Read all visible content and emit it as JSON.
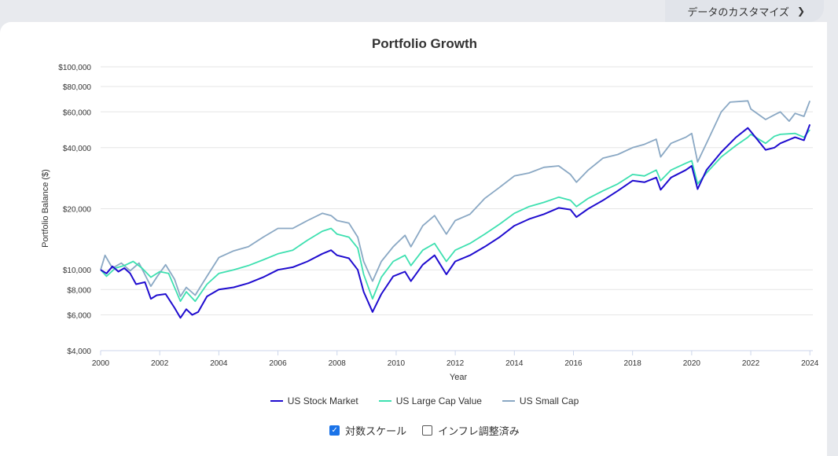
{
  "header": {
    "customize_label": "データのカスタマイズ"
  },
  "colors": {
    "us_stock": "#1f0ccf",
    "large_value": "#3ee0b0",
    "small_cap": "#8aa8c4"
  },
  "options": {
    "log_scale_label": "対数スケール",
    "log_scale_checked": true,
    "inflation_label": "インフレ調整済み",
    "inflation_checked": false
  },
  "chart_data": {
    "type": "line",
    "title": "Portfolio Growth",
    "xlabel": "Year",
    "ylabel": "Portfolio Balance ($)",
    "yscale": "log",
    "ylim": [
      4000,
      100000
    ],
    "xlim": [
      2000,
      2024.1
    ],
    "yticks": [
      4000,
      6000,
      8000,
      10000,
      20000,
      40000,
      60000,
      80000,
      100000
    ],
    "ytick_labels": [
      "$4,000",
      "$6,000",
      "$8,000",
      "$10,000",
      "$20,000",
      "$40,000",
      "$60,000",
      "$80,000",
      "$100,000"
    ],
    "xticks": [
      2000,
      2002,
      2004,
      2006,
      2008,
      2010,
      2012,
      2014,
      2016,
      2018,
      2020,
      2022,
      2024
    ],
    "xtick_labels": [
      "2000",
      "2002",
      "2004",
      "2006",
      "2008",
      "2010",
      "2012",
      "2014",
      "2016",
      "2018",
      "2020",
      "2022",
      "2024"
    ],
    "series": [
      {
        "name": "US Stock Market",
        "color": "#1f0ccf",
        "points": [
          [
            2000,
            10000
          ],
          [
            2000.2,
            9600
          ],
          [
            2000.4,
            10400
          ],
          [
            2000.6,
            9800
          ],
          [
            2000.8,
            10200
          ],
          [
            2001.0,
            9600
          ],
          [
            2001.2,
            8500
          ],
          [
            2001.5,
            8700
          ],
          [
            2001.7,
            7200
          ],
          [
            2001.9,
            7500
          ],
          [
            2002.2,
            7600
          ],
          [
            2002.5,
            6500
          ],
          [
            2002.7,
            5800
          ],
          [
            2002.9,
            6400
          ],
          [
            2003.1,
            6000
          ],
          [
            2003.3,
            6200
          ],
          [
            2003.6,
            7400
          ],
          [
            2004.0,
            8000
          ],
          [
            2004.5,
            8200
          ],
          [
            2005.0,
            8600
          ],
          [
            2005.5,
            9200
          ],
          [
            2006.0,
            10000
          ],
          [
            2006.5,
            10300
          ],
          [
            2007.0,
            11000
          ],
          [
            2007.5,
            12000
          ],
          [
            2007.8,
            12500
          ],
          [
            2008.0,
            11800
          ],
          [
            2008.4,
            11400
          ],
          [
            2008.7,
            10000
          ],
          [
            2008.9,
            7800
          ],
          [
            2009.2,
            6200
          ],
          [
            2009.5,
            7600
          ],
          [
            2009.9,
            9300
          ],
          [
            2010.3,
            9800
          ],
          [
            2010.5,
            8800
          ],
          [
            2010.9,
            10600
          ],
          [
            2011.3,
            11800
          ],
          [
            2011.7,
            9500
          ],
          [
            2012.0,
            11000
          ],
          [
            2012.5,
            11800
          ],
          [
            2013.0,
            13000
          ],
          [
            2013.5,
            14500
          ],
          [
            2014.0,
            16500
          ],
          [
            2014.5,
            17800
          ],
          [
            2015.0,
            18800
          ],
          [
            2015.5,
            20200
          ],
          [
            2015.9,
            19800
          ],
          [
            2016.1,
            18200
          ],
          [
            2016.5,
            20000
          ],
          [
            2017.0,
            22000
          ],
          [
            2017.5,
            24500
          ],
          [
            2018.0,
            27500
          ],
          [
            2018.4,
            27000
          ],
          [
            2018.8,
            28500
          ],
          [
            2018.95,
            24800
          ],
          [
            2019.3,
            28500
          ],
          [
            2019.8,
            31000
          ],
          [
            2020.0,
            32500
          ],
          [
            2020.2,
            25000
          ],
          [
            2020.5,
            31000
          ],
          [
            2021.0,
            38000
          ],
          [
            2021.5,
            45000
          ],
          [
            2021.9,
            50000
          ],
          [
            2022.0,
            48000
          ],
          [
            2022.5,
            39000
          ],
          [
            2022.8,
            40000
          ],
          [
            2023.0,
            42000
          ],
          [
            2023.5,
            45000
          ],
          [
            2023.8,
            43500
          ],
          [
            2024.0,
            52000
          ]
        ]
      },
      {
        "name": "US Large Cap Value",
        "color": "#3ee0b0",
        "points": [
          [
            2000,
            10000
          ],
          [
            2000.2,
            9300
          ],
          [
            2000.5,
            10200
          ],
          [
            2000.8,
            10500
          ],
          [
            2001.1,
            11000
          ],
          [
            2001.4,
            10200
          ],
          [
            2001.7,
            9200
          ],
          [
            2002.0,
            9800
          ],
          [
            2002.3,
            9600
          ],
          [
            2002.7,
            7000
          ],
          [
            2002.9,
            7800
          ],
          [
            2003.2,
            7000
          ],
          [
            2003.6,
            8500
          ],
          [
            2004.0,
            9600
          ],
          [
            2004.5,
            10000
          ],
          [
            2005.0,
            10500
          ],
          [
            2005.5,
            11200
          ],
          [
            2006.0,
            12000
          ],
          [
            2006.5,
            12500
          ],
          [
            2007.0,
            14000
          ],
          [
            2007.5,
            15500
          ],
          [
            2007.8,
            16000
          ],
          [
            2008.0,
            15000
          ],
          [
            2008.4,
            14500
          ],
          [
            2008.7,
            12800
          ],
          [
            2008.9,
            9500
          ],
          [
            2009.2,
            7200
          ],
          [
            2009.5,
            9200
          ],
          [
            2009.9,
            11000
          ],
          [
            2010.3,
            11800
          ],
          [
            2010.5,
            10500
          ],
          [
            2010.9,
            12500
          ],
          [
            2011.3,
            13500
          ],
          [
            2011.7,
            11000
          ],
          [
            2012.0,
            12500
          ],
          [
            2012.5,
            13500
          ],
          [
            2013.0,
            15000
          ],
          [
            2013.5,
            16800
          ],
          [
            2014.0,
            19000
          ],
          [
            2014.5,
            20500
          ],
          [
            2015.0,
            21500
          ],
          [
            2015.5,
            22800
          ],
          [
            2015.9,
            22000
          ],
          [
            2016.1,
            20500
          ],
          [
            2016.5,
            22500
          ],
          [
            2017.0,
            24500
          ],
          [
            2017.5,
            26500
          ],
          [
            2018.0,
            29500
          ],
          [
            2018.4,
            29000
          ],
          [
            2018.8,
            31000
          ],
          [
            2018.95,
            27500
          ],
          [
            2019.3,
            31000
          ],
          [
            2019.8,
            33500
          ],
          [
            2020.0,
            34500
          ],
          [
            2020.2,
            26500
          ],
          [
            2020.5,
            30000
          ],
          [
            2021.0,
            36000
          ],
          [
            2021.5,
            41000
          ],
          [
            2021.9,
            45000
          ],
          [
            2022.0,
            46500
          ],
          [
            2022.5,
            42000
          ],
          [
            2022.8,
            45500
          ],
          [
            2023.0,
            46500
          ],
          [
            2023.5,
            47000
          ],
          [
            2023.8,
            45000
          ],
          [
            2024.0,
            49000
          ]
        ]
      },
      {
        "name": "US Small Cap",
        "color": "#8aa8c4",
        "points": [
          [
            2000,
            10000
          ],
          [
            2000.15,
            11800
          ],
          [
            2000.4,
            10200
          ],
          [
            2000.7,
            10800
          ],
          [
            2001.0,
            9900
          ],
          [
            2001.3,
            10800
          ],
          [
            2001.7,
            8300
          ],
          [
            2001.9,
            9200
          ],
          [
            2002.2,
            10600
          ],
          [
            2002.5,
            9000
          ],
          [
            2002.7,
            7400
          ],
          [
            2002.9,
            8200
          ],
          [
            2003.2,
            7500
          ],
          [
            2003.6,
            9300
          ],
          [
            2004.0,
            11500
          ],
          [
            2004.5,
            12400
          ],
          [
            2005.0,
            13000
          ],
          [
            2005.5,
            14500
          ],
          [
            2006.0,
            16000
          ],
          [
            2006.5,
            16000
          ],
          [
            2007.0,
            17500
          ],
          [
            2007.5,
            19000
          ],
          [
            2007.8,
            18500
          ],
          [
            2008.0,
            17500
          ],
          [
            2008.4,
            17000
          ],
          [
            2008.7,
            14500
          ],
          [
            2008.9,
            11000
          ],
          [
            2009.2,
            8800
          ],
          [
            2009.5,
            11000
          ],
          [
            2009.9,
            13000
          ],
          [
            2010.3,
            14800
          ],
          [
            2010.5,
            13000
          ],
          [
            2010.9,
            16500
          ],
          [
            2011.3,
            18500
          ],
          [
            2011.7,
            15000
          ],
          [
            2012.0,
            17500
          ],
          [
            2012.5,
            18800
          ],
          [
            2013.0,
            22500
          ],
          [
            2013.5,
            25500
          ],
          [
            2014.0,
            29000
          ],
          [
            2014.5,
            30000
          ],
          [
            2015.0,
            32000
          ],
          [
            2015.5,
            32500
          ],
          [
            2015.9,
            29500
          ],
          [
            2016.1,
            27000
          ],
          [
            2016.5,
            31000
          ],
          [
            2017.0,
            35500
          ],
          [
            2017.5,
            37000
          ],
          [
            2018.0,
            40000
          ],
          [
            2018.4,
            41500
          ],
          [
            2018.8,
            44000
          ],
          [
            2018.95,
            36000
          ],
          [
            2019.3,
            42000
          ],
          [
            2019.8,
            45000
          ],
          [
            2020.0,
            47000
          ],
          [
            2020.2,
            34000
          ],
          [
            2020.5,
            42000
          ],
          [
            2021.0,
            60000
          ],
          [
            2021.3,
            67000
          ],
          [
            2021.9,
            68000
          ],
          [
            2022.0,
            62000
          ],
          [
            2022.5,
            55000
          ],
          [
            2022.8,
            58000
          ],
          [
            2023.0,
            60000
          ],
          [
            2023.3,
            54000
          ],
          [
            2023.5,
            59000
          ],
          [
            2023.8,
            57000
          ],
          [
            2024.0,
            68000
          ]
        ]
      }
    ]
  }
}
